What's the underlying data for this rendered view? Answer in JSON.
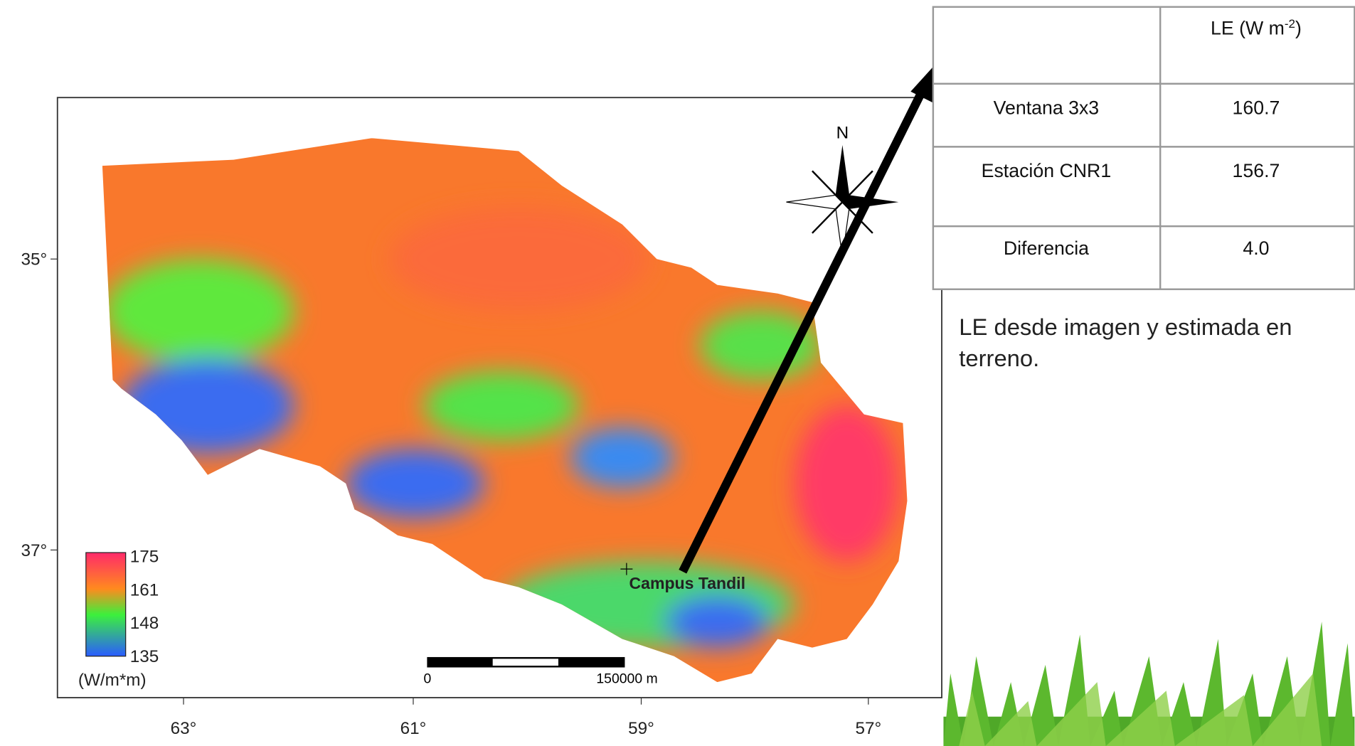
{
  "map": {
    "lat_labels": [
      "35°",
      "37°"
    ],
    "lon_labels": [
      "63°",
      "61°",
      "59°",
      "57°"
    ],
    "north": "N",
    "site_label": "Campus Tandil",
    "colorbar": {
      "labels": [
        "175",
        "161",
        "148",
        "135"
      ],
      "unit": "(W/m*m)"
    },
    "scale_bar": {
      "start": "0",
      "end": "150000 m"
    }
  },
  "table": {
    "header": {
      "text": "LE (W m",
      "sup": "-2",
      "close": ")"
    },
    "rows": [
      [
        "Ventana 3x3",
        "160.7"
      ],
      [
        "Estación CNR1",
        "156.7"
      ],
      [
        "Diferencia",
        "4.0"
      ]
    ]
  },
  "caption": [
    "LE desde imagen y estimada en",
    "terreno."
  ]
}
